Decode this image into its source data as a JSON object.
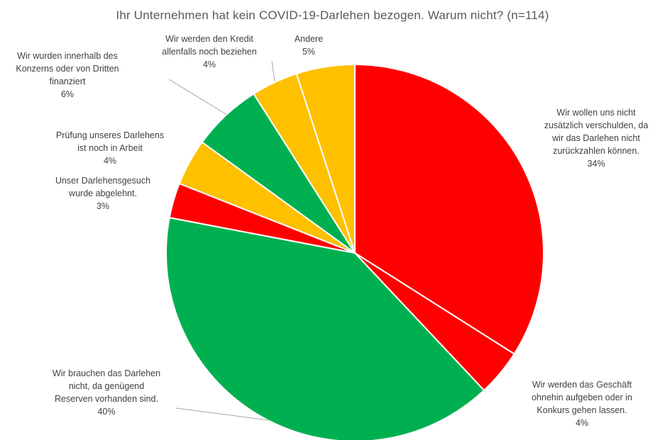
{
  "chart_data": {
    "type": "pie",
    "title": "Ihr Unternehmen hat kein COVID-19-Darlehen bezogen. Warum nicht? (n=114)",
    "slices": [
      {
        "label": "Wir wollen uns nicht\nzusätzlich verschulden, da\nwir das Darlehen nicht\nzurückzahlen können.",
        "percent_label": "34%",
        "value": 34,
        "color": "#ff0000"
      },
      {
        "label": "Wir werden das Geschäft\nohnehin aufgeben oder in\nKonkurs gehen lassen.",
        "percent_label": "4%",
        "value": 4,
        "color": "#ff0000"
      },
      {
        "label": "Wir brauchen das Darlehen\nnicht, da genügend\nReserven vorhanden sind.",
        "percent_label": "40%",
        "value": 40,
        "color": "#00b050"
      },
      {
        "label": "Unser Darlehensgesuch\nwurde abgelehnt.",
        "percent_label": "3%",
        "value": 3,
        "color": "#ff0000"
      },
      {
        "label": "Prüfung unseres Darlehens\nist noch in Arbeit",
        "percent_label": "4%",
        "value": 4,
        "color": "#ffc000"
      },
      {
        "label": "Wir wurden innerhalb des\nKonzerns oder von Dritten\nfinanziert",
        "percent_label": "6%",
        "value": 6,
        "color": "#00b050"
      },
      {
        "label": "Wir werden den Kredit\nallenfalls noch beziehen",
        "percent_label": "4%",
        "value": 4,
        "color": "#ffc000"
      },
      {
        "label": "Andere",
        "percent_label": "5%",
        "value": 5,
        "color": "#ffc000"
      }
    ]
  }
}
